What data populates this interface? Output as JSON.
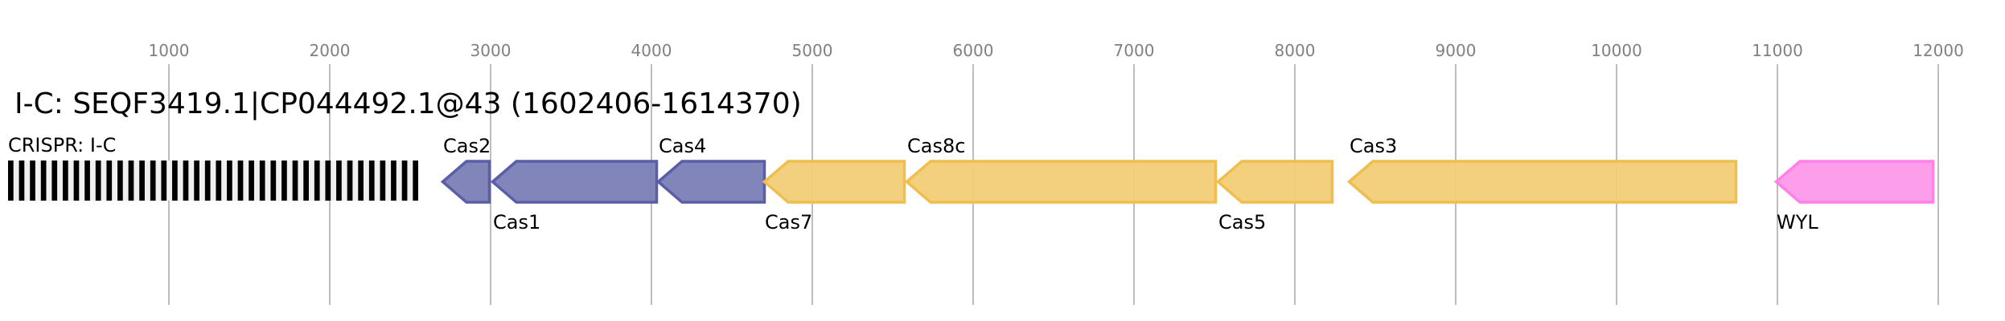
{
  "title": "I-C: SEQF3419.1|CP044492.1@43 (1602406-1614370)",
  "axis": {
    "ticks": [
      1000,
      2000,
      3000,
      4000,
      5000,
      6000,
      7000,
      8000,
      9000,
      10000,
      11000,
      12000
    ],
    "tick_labels": [
      "1000",
      "2000",
      "3000",
      "4000",
      "5000",
      "6000",
      "7000",
      "8000",
      "9000",
      "10000",
      "11000",
      "12000"
    ],
    "range_bp": [
      0,
      12415
    ]
  },
  "crispr_array": {
    "label": "CRISPR: I-C",
    "start": 0,
    "end": 2550,
    "repeat_count": 38,
    "repeat_color": "#000000",
    "spacer_color": "#f0f0f0"
  },
  "genes": [
    {
      "name": "Cas2",
      "start": 2695,
      "end": 3000,
      "strand": "-",
      "label_pos": "above",
      "fill": "#7b7eb6",
      "stroke": "#5a5ea8"
    },
    {
      "name": "Cas1",
      "start": 3005,
      "end": 4040,
      "strand": "-",
      "label_pos": "below",
      "fill": "#7b7eb6",
      "stroke": "#5a5ea8"
    },
    {
      "name": "Cas4",
      "start": 4035,
      "end": 4710,
      "strand": "-",
      "label_pos": "above",
      "fill": "#7b7eb6",
      "stroke": "#5a5ea8"
    },
    {
      "name": "Cas7",
      "start": 4695,
      "end": 5580,
      "strand": "-",
      "label_pos": "below",
      "fill": "#f1cd76",
      "stroke": "#efbe4e"
    },
    {
      "name": "Cas8c",
      "start": 5580,
      "end": 7515,
      "strand": "-",
      "label_pos": "above",
      "fill": "#f1cd76",
      "stroke": "#efbe4e"
    },
    {
      "name": "Cas5",
      "start": 7515,
      "end": 8240,
      "strand": "-",
      "label_pos": "below",
      "fill": "#f1cd76",
      "stroke": "#efbe4e"
    },
    {
      "name": "Cas3",
      "start": 8330,
      "end": 10750,
      "strand": "-",
      "label_pos": "above",
      "fill": "#f1cd76",
      "stroke": "#efbe4e"
    },
    {
      "name": "WYL",
      "start": 10985,
      "end": 11975,
      "strand": "-",
      "label_pos": "below",
      "fill": "#fd99ea",
      "stroke": "#ff80e8"
    }
  ]
}
